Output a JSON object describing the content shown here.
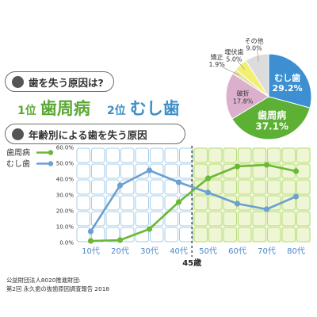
{
  "pill_question": "歯を失う原因は?",
  "ranking": {
    "first_pos": "1位",
    "first_name": "歯周病",
    "second_pos": "2位",
    "second_name": "むし歯"
  },
  "pill_age": "年齢別による歯を失う原因",
  "pie": {
    "slices": [
      {
        "label": "むし歯",
        "value": 29.2,
        "value_text": "29.2%",
        "color": "#3d8fd1"
      },
      {
        "label": "歯周病",
        "value": 37.1,
        "value_text": "37.1%",
        "color": "#5cb033"
      },
      {
        "label": "破折",
        "value": 17.8,
        "value_text": "17.8%",
        "color": "#dcb0cc"
      },
      {
        "label": "矯正",
        "value": 1.9,
        "value_text": "1.9%",
        "color": "#e6e2a0"
      },
      {
        "label": "埋伏歯",
        "value": 5.0,
        "value_text": "5.0%",
        "color": "#f3ef73"
      },
      {
        "label": "その他",
        "value": 9.0,
        "value_text": "9.0%",
        "color": "#dcdcdc"
      }
    ]
  },
  "chart_data": {
    "type": "line",
    "categories": [
      "10代",
      "20代",
      "30代",
      "40代",
      "50代",
      "60代",
      "70代",
      "80代"
    ],
    "y_ticks": [
      "0.0%",
      "10.0%",
      "20.0%",
      "30.0%",
      "40.0%",
      "50.0%",
      "60.0%"
    ],
    "ylim": [
      0,
      60
    ],
    "series": [
      {
        "name": "歯周病",
        "color": "#6bb836",
        "values": [
          1.0,
          1.5,
          8.5,
          25.5,
          40.5,
          48.0,
          49.0,
          45.0
        ]
      },
      {
        "name": "むし歯",
        "color": "#6ca0cf",
        "values": [
          7.0,
          36.0,
          45.5,
          38.0,
          31.5,
          24.5,
          21.0,
          29.0
        ]
      }
    ],
    "marker_label": "45歳",
    "grid": true,
    "legend": "top-left"
  },
  "source": {
    "line1": "公益財団法人8020推進財団:",
    "line2": "第2回 永久歯の抜歯原因調査報告 2018"
  }
}
